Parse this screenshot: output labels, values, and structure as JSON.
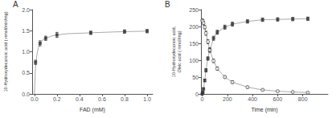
{
  "chart_data": [
    {
      "type": "line",
      "annotation": "A",
      "xlabel": "FAD (mM)",
      "ylabel": "10-Hydroxydecanoic acid ( nmol/min/mg)",
      "xlim": [
        -0.02,
        1.05
      ],
      "ylim": [
        0,
        2.0
      ],
      "xticks": [
        {
          "value": 0.0,
          "label": "0.0"
        },
        0.2,
        0.4,
        0.6,
        0.8,
        {
          "value": 1.0,
          "label": "1.0"
        }
      ],
      "yticks": [
        {
          "value": 0.0,
          "label": "0.0"
        },
        0.5,
        {
          "value": 1.0,
          "label": "1.0"
        },
        1.5,
        {
          "value": 2.0,
          "label": "2.0"
        }
      ],
      "grid": false,
      "series": [
        {
          "type": "line",
          "color": "#aaaaaa",
          "x": [
            0.0,
            0.008,
            0.015,
            0.025,
            0.04,
            0.06,
            0.08,
            0.1,
            0.15,
            0.2,
            0.3,
            0.5,
            0.7,
            1.0
          ],
          "values": [
            0.0,
            0.55,
            0.78,
            0.98,
            1.14,
            1.24,
            1.29,
            1.32,
            1.37,
            1.4,
            1.43,
            1.45,
            1.47,
            1.49
          ]
        },
        {
          "type": "scatter",
          "color": "#333333",
          "marker": "square",
          "x": [
            0.01,
            0.05,
            0.1,
            0.2,
            0.5,
            0.8,
            1.0
          ],
          "values": [
            0.75,
            1.2,
            1.32,
            1.4,
            1.45,
            1.48,
            1.49
          ],
          "errors": [
            0.05,
            0.06,
            0.05,
            0.06,
            0.04,
            0.04,
            0.04
          ]
        }
      ]
    },
    {
      "type": "line",
      "annotation": "B",
      "xlabel": "Time (min)",
      "ylabel": "10-Hydroxydecanoic acid,\nOleic acid ( nmol/mg)",
      "xlim": [
        -10,
        1000
      ],
      "ylim": [
        0,
        250
      ],
      "xticks": [
        0,
        200,
        400,
        600,
        800
      ],
      "yticks": [
        0,
        50,
        100,
        150,
        200,
        250
      ],
      "grid": false,
      "series": [
        {
          "type": "line",
          "color": "#aaaaaa",
          "x": [
            0,
            5,
            10,
            20,
            30,
            45,
            60,
            90,
            120,
            180,
            240,
            360,
            480,
            600,
            720,
            840
          ],
          "values": [
            0,
            5,
            15,
            40,
            70,
            105,
            130,
            165,
            183,
            198,
            207,
            215,
            220,
            221,
            222,
            223
          ]
        },
        {
          "type": "scatter",
          "color": "#333333",
          "marker": "square",
          "x": [
            0,
            5,
            10,
            20,
            30,
            45,
            60,
            90,
            120,
            180,
            240,
            360,
            480,
            600,
            720,
            840
          ],
          "values": [
            0,
            5,
            15,
            40,
            70,
            105,
            130,
            165,
            183,
            198,
            207,
            215,
            220,
            221,
            222,
            223
          ],
          "errors": [
            0,
            2,
            3,
            4,
            5,
            5,
            6,
            6,
            6,
            6,
            6,
            5,
            5,
            5,
            5,
            5
          ]
        },
        {
          "type": "line",
          "color": "#aaaaaa",
          "x": [
            0,
            5,
            10,
            20,
            30,
            45,
            60,
            90,
            120,
            180,
            240,
            360,
            480,
            600,
            720,
            840
          ],
          "values": [
            218,
            215,
            210,
            198,
            180,
            155,
            130,
            98,
            75,
            50,
            35,
            20,
            12,
            8,
            6,
            4
          ]
        },
        {
          "type": "scatter",
          "color": "#333333",
          "marker": "open_circle",
          "x": [
            0,
            5,
            10,
            20,
            30,
            45,
            60,
            90,
            120,
            180,
            240,
            360,
            480,
            600,
            720,
            840
          ],
          "values": [
            218,
            215,
            210,
            198,
            180,
            155,
            130,
            98,
            75,
            50,
            35,
            20,
            12,
            8,
            6,
            4
          ],
          "errors": [
            5,
            5,
            5,
            5,
            6,
            6,
            6,
            5,
            5,
            4,
            4,
            3,
            3,
            2,
            2,
            2
          ]
        }
      ]
    }
  ]
}
